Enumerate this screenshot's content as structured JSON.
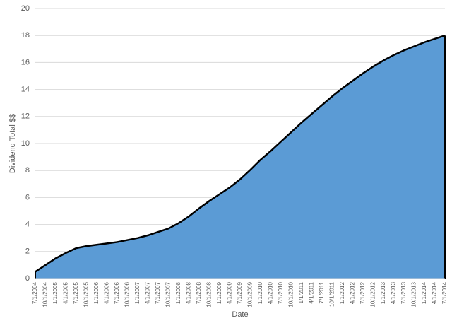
{
  "chart_data": {
    "type": "area",
    "x_label": "Date",
    "y_label": "Dividend Total $$",
    "categories": [
      "7/1/2004",
      "10/1/2004",
      "1/1/2005",
      "4/1/2005",
      "7/1/2005",
      "10/1/2005",
      "1/1/2006",
      "4/1/2006",
      "7/1/2006",
      "10/1/2006",
      "1/1/2007",
      "4/1/2007",
      "7/1/2007",
      "10/1/2007",
      "1/1/2008",
      "4/1/2008",
      "7/1/2008",
      "10/1/2008",
      "1/1/2009",
      "4/1/2009",
      "7/1/2009",
      "10/1/2009",
      "1/1/2010",
      "4/1/2010",
      "7/1/2010",
      "10/1/2010",
      "1/1/2011",
      "4/1/2011",
      "7/1/2011",
      "10/1/2011",
      "1/1/2012",
      "4/1/2012",
      "7/1/2012",
      "10/1/2012",
      "1/1/2013",
      "4/1/2013",
      "7/1/2013",
      "10/1/2013",
      "1/1/2014",
      "4/1/2014",
      "7/1/2014"
    ],
    "values": [
      0.5,
      1.0,
      1.5,
      1.9,
      2.25,
      2.4,
      2.5,
      2.6,
      2.7,
      2.85,
      3.0,
      3.2,
      3.45,
      3.7,
      4.1,
      4.6,
      5.2,
      5.75,
      6.25,
      6.75,
      7.35,
      8.05,
      8.8,
      9.45,
      10.15,
      10.85,
      11.55,
      12.2,
      12.85,
      13.5,
      14.1,
      14.65,
      15.2,
      15.7,
      16.15,
      16.55,
      16.9,
      17.2,
      17.5,
      17.75,
      18.0
    ],
    "color": "#5b9bd5",
    "line_color": "#000000",
    "ylim": [
      0,
      20
    ],
    "yticks": [
      0,
      2,
      4,
      6,
      8,
      10,
      12,
      14,
      16,
      18,
      20
    ],
    "grid": true
  }
}
